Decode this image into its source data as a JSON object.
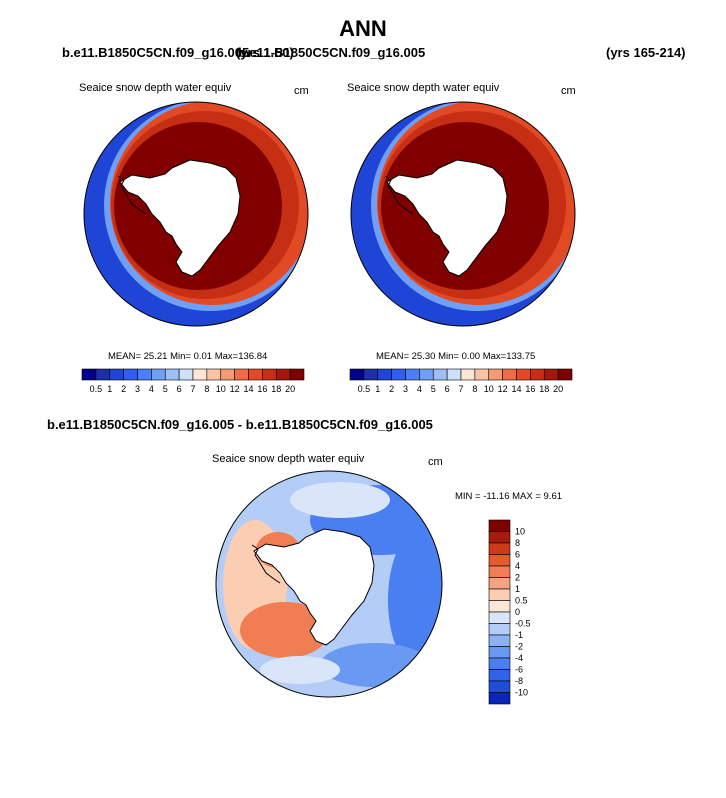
{
  "page_title": "ANN",
  "colors": {
    "snow_scale": [
      "#00008b",
      "#1a2fa8",
      "#1f45d6",
      "#2f5ef0",
      "#4c7ff7",
      "#6f9ff7",
      "#9cc0f5",
      "#cfe1fa",
      "#fde6d6",
      "#f9c4a6",
      "#f59a72",
      "#ef6d45",
      "#e24a26",
      "#c72f14",
      "#a4170b",
      "#800000"
    ],
    "diff_scale": [
      "#00008b",
      "#0a26b8",
      "#1f4dd9",
      "#2f63ea",
      "#4a7ff1",
      "#6a99f2",
      "#8db2f3",
      "#b4cdf6",
      "#d9e6fa",
      "#fde8d8",
      "#fbcdb2",
      "#f7a37f",
      "#f17d52",
      "#e65a30",
      "#cc3a18",
      "#a61b0b",
      "#800000"
    ],
    "land": "#ffffff",
    "outline": "#000000"
  },
  "chart_data": [
    {
      "type": "heatmap",
      "case": "b.e11.B1850C5CN.f09_g16.005",
      "years": "(yrs 1-50)",
      "title": "Seaice snow depth water equiv",
      "units": "cm",
      "mean_label": "MEAN=",
      "mean": "25.21",
      "min_label": "Min=",
      "min": "0.01",
      "max_label": "Max=",
      "max": "136.84",
      "colorbar_levels": [
        "0.5",
        "1",
        "2",
        "3",
        "4",
        "5",
        "6",
        "7",
        "8",
        "10",
        "12",
        "14",
        "16",
        "18",
        "20"
      ]
    },
    {
      "type": "heatmap",
      "case": "b.e11.B1850C5CN.f09_g16.005",
      "years": "(yrs 165-214)",
      "title": "Seaice snow depth water equiv",
      "units": "cm",
      "mean_label": "MEAN=",
      "mean": "25.30",
      "min_label": "Min=",
      "min": "0.00",
      "max_label": "Max=",
      "max": "133.75",
      "colorbar_levels": [
        "0.5",
        "1",
        "2",
        "3",
        "4",
        "5",
        "6",
        "7",
        "8",
        "10",
        "12",
        "14",
        "16",
        "18",
        "20"
      ]
    },
    {
      "type": "heatmap",
      "case": "b.e11.B1850C5CN.f09_g16.005 - b.e11.B1850C5CN.f09_g16.005",
      "title": "Seaice snow depth water equiv",
      "units": "cm",
      "min_label": "MIN =",
      "min": "-11.16",
      "max_label": "MAX =",
      "max": "9.61",
      "colorbar_levels": [
        "10",
        "8",
        "6",
        "4",
        "2",
        "1",
        "0.5",
        "0",
        "-0.5",
        "-1",
        "-2",
        "-4",
        "-6",
        "-8",
        "-10"
      ]
    }
  ]
}
